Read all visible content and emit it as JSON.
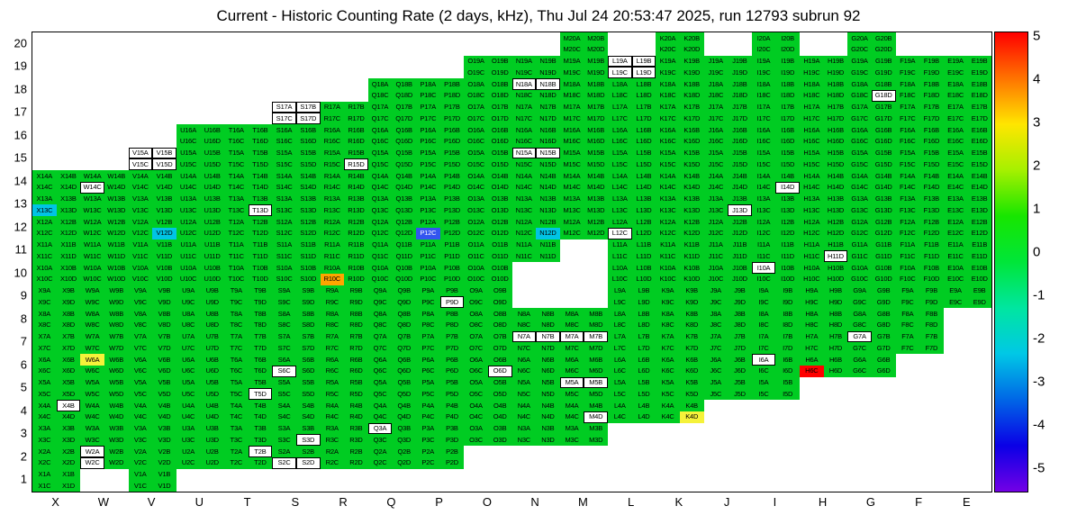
{
  "title": "Current - Historic Counting Rate (2 days, kHz), Thu Jul 24 20:53:47 2025, run 12793 subrun 92",
  "chart_data": {
    "type": "heatmap",
    "title": "Current - Historic Counting Rate (2 days, kHz), Thu Jul 24 20:53:47 2025, run 12793 subrun 92",
    "x_axis": {
      "categories": [
        "X",
        "W",
        "V",
        "U",
        "T",
        "S",
        "R",
        "Q",
        "P",
        "O",
        "N",
        "M",
        "L",
        "K",
        "J",
        "I",
        "H",
        "G",
        "F",
        "E"
      ]
    },
    "y_axis": {
      "categories": [
        20,
        19,
        18,
        17,
        16,
        15,
        14,
        13,
        12,
        11,
        10,
        9,
        8,
        7,
        6,
        5,
        4,
        3,
        2,
        1
      ]
    },
    "channel_suffixes": [
      "A",
      "B",
      "C",
      "D"
    ],
    "rows": [
      {
        "row": 20,
        "columns": [
          "M",
          "K",
          "I",
          "G"
        ]
      },
      {
        "row": 19,
        "from": "O",
        "to": "E"
      },
      {
        "row": 18,
        "from": "Q",
        "to": "E"
      },
      {
        "row": 17,
        "from": "S",
        "to": "E"
      },
      {
        "row": 16,
        "from": "U",
        "to": "E"
      },
      {
        "row": 15,
        "from": "V",
        "to": "E"
      },
      {
        "row": 14,
        "from": "X",
        "to": "E"
      },
      {
        "row": 13,
        "from": "X",
        "to": "E"
      },
      {
        "row": 12,
        "from": "X",
        "to": "E"
      },
      {
        "row": 11,
        "from": "X",
        "to": "E",
        "skip": [
          "M"
        ]
      },
      {
        "row": 10,
        "from": "X",
        "to": "E",
        "skip": [
          "N",
          "M"
        ]
      },
      {
        "row": 9,
        "from": "X",
        "to": "E",
        "skip": [
          "N",
          "M"
        ]
      },
      {
        "row": 8,
        "from": "X",
        "to": "F"
      },
      {
        "row": 7,
        "from": "X",
        "to": "F"
      },
      {
        "row": 6,
        "from": "X",
        "to": "G"
      },
      {
        "row": 5,
        "from": "X",
        "to": "I"
      },
      {
        "row": 4,
        "from": "X",
        "to": "K"
      },
      {
        "row": 3,
        "from": "X",
        "to": "M"
      },
      {
        "row": 2,
        "from": "X",
        "to": "P"
      },
      {
        "row": 1,
        "columns": [
          "X",
          "V"
        ]
      }
    ],
    "special_channels": {
      "L19A": "white",
      "L19B": "white",
      "L19C": "white",
      "L19D": "white",
      "N18A": "white",
      "N18B": "white",
      "G18D": "white",
      "S17A": "white",
      "S17B": "white",
      "S17C": "white",
      "S17D": "white",
      "V15A": "white",
      "V15B": "white",
      "V15C": "white",
      "V15D": "white",
      "N15A": "white",
      "N15B": "white",
      "R15D": "white",
      "W14C": "white",
      "I14D": "white",
      "X13C": "cyan",
      "T13D": "white",
      "J13D": "white",
      "V12D": "cyan",
      "P12C": "blue",
      "N12D": "cyan",
      "L12C": "white",
      "H11D": "white",
      "I10A": "white",
      "R10C": "orange",
      "P9D": "white",
      "N7A": "white",
      "N7B": "white",
      "M7A": "white",
      "M7B": "white",
      "G7A": "white",
      "W6A": "yellow",
      "I6A": "white",
      "S6C": "white",
      "O6D": "white",
      "H6C": "red",
      "M5A": "white",
      "M5B": "white",
      "T5D": "white",
      "X4B": "white",
      "M4D": "white",
      "K4D": "yellow",
      "Q3A": "white",
      "S3D": "white",
      "W2A": "white",
      "W2C": "white",
      "T2B": "white",
      "S2C": "white",
      "S2D": "white"
    },
    "colors": {
      "green": "#00cc22",
      "white": "#ffffff",
      "yellow": "#f5f23a",
      "orange": "#ffa500",
      "red": "#ff0000",
      "cyan": "#00c4e4",
      "blue": "#3355f0"
    },
    "value_map": {
      "green": 1,
      "yellow": 2.5,
      "orange": 3.5,
      "red": 5,
      "cyan": -1.5,
      "blue": -3.5,
      "white": "no data / out of range"
    },
    "colorbar": {
      "min": -5,
      "max": 5,
      "tick_labels": [
        "5",
        "4",
        "3",
        "2",
        "1",
        "0",
        "-1",
        "-2",
        "-3",
        "-4",
        "-5"
      ],
      "palette_stops": [
        "#ff0000",
        "#ff7300",
        "#ffe600",
        "#a6f000",
        "#17e600",
        "#00e639",
        "#00e6a0",
        "#00c8e6",
        "#0066e6",
        "#0a00e6",
        "#7300e6"
      ]
    }
  }
}
